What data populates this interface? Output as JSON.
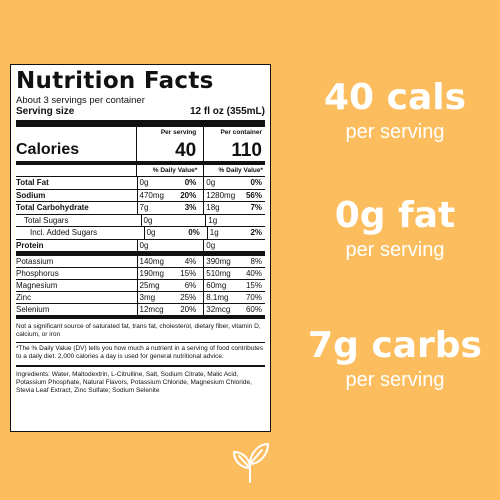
{
  "label": {
    "title": "Nutrition Facts",
    "servings": "About 3 servings per container",
    "serving_size_label": "Serving size",
    "serving_size_value": "12 fl oz (355mL)",
    "calories_label": "Calories",
    "per_serving_header": "Per serving",
    "per_container_header": "Per container",
    "calories_serving": "40",
    "calories_container": "110",
    "dv_header": "% Daily Value*",
    "rows": [
      {
        "name": "Total Fat",
        "a1": "0g",
        "p1": "0%",
        "a2": "0g",
        "p2": "0%"
      },
      {
        "name": "Sodium",
        "a1": "470mg",
        "p1": "20%",
        "a2": "1280mg",
        "p2": "56%"
      },
      {
        "name": "Total Carbohydrate",
        "a1": "7g",
        "p1": "3%",
        "a2": "18g",
        "p2": "7%"
      },
      {
        "name": "Total Sugars",
        "a1": "0g",
        "p1": "",
        "a2": "1g",
        "p2": ""
      },
      {
        "name": "Incl. Added Sugars",
        "a1": "0g",
        "p1": "0%",
        "a2": "1g",
        "p2": "2%"
      },
      {
        "name": "Protein",
        "a1": "0g",
        "p1": "",
        "a2": "0g",
        "p2": ""
      }
    ],
    "minerals": [
      {
        "name": "Potassium",
        "a1": "140mg",
        "p1": "4%",
        "a2": "390mg",
        "p2": "8%"
      },
      {
        "name": "Phosphorus",
        "a1": "190mg",
        "p1": "15%",
        "a2": "510mg",
        "p2": "40%"
      },
      {
        "name": "Magnesium",
        "a1": "25mg",
        "p1": "6%",
        "a2": "60mg",
        "p2": "15%"
      },
      {
        "name": "Zinc",
        "a1": "3mg",
        "p1": "25%",
        "a2": "8.1mg",
        "p2": "70%"
      },
      {
        "name": "Selenium",
        "a1": "12mcg",
        "p1": "20%",
        "a2": "32mcg",
        "p2": "60%"
      }
    ],
    "footnote1": "Not a significant source of saturated fat, trans fat, cholesterol, dietary fiber, vitamin D, calcium, or iron",
    "footnote2": "*The % Daily Value (DV) tells you how much a nutrient in a serving of food contributes to a daily diet. 2,000 calories a day is used for general nutritional advice.",
    "ingredients": "Ingredients: Water, Maltodextrin, L-Citrulline, Salt, Sodium Citrate, Malic Acid, Potassium Phosphate, Natural Flavors, Potassium Chloride, Magnesium Chloride, Stevia Leaf Extract, Zinc Sulfate; Sodium Selenite"
  },
  "claims": [
    {
      "big": "40 cals",
      "small": "per serving"
    },
    {
      "big": "0g fat",
      "small": "per serving"
    },
    {
      "big": "7g carbs",
      "small": "per serving"
    }
  ],
  "colors": {
    "background": "#fbbd5e",
    "text": "#ffffff"
  },
  "icon": "leaf-icon"
}
